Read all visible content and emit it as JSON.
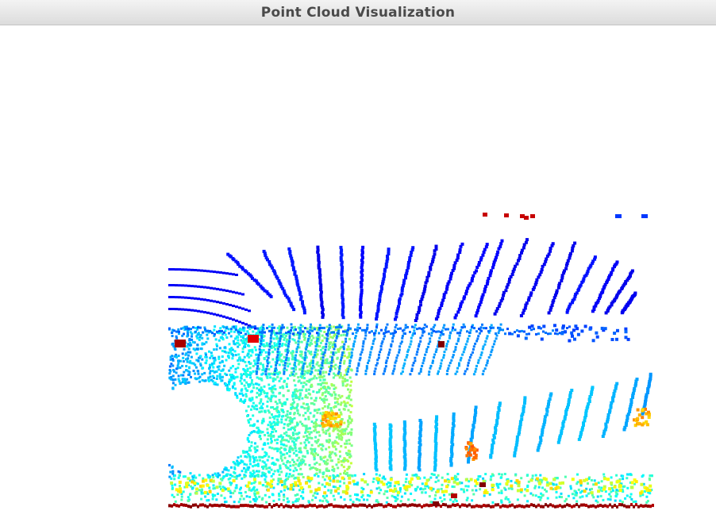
{
  "window": {
    "title": "Point Cloud Visualization"
  },
  "viewport": {
    "background": "#ffffff",
    "colormap": "jet"
  }
}
